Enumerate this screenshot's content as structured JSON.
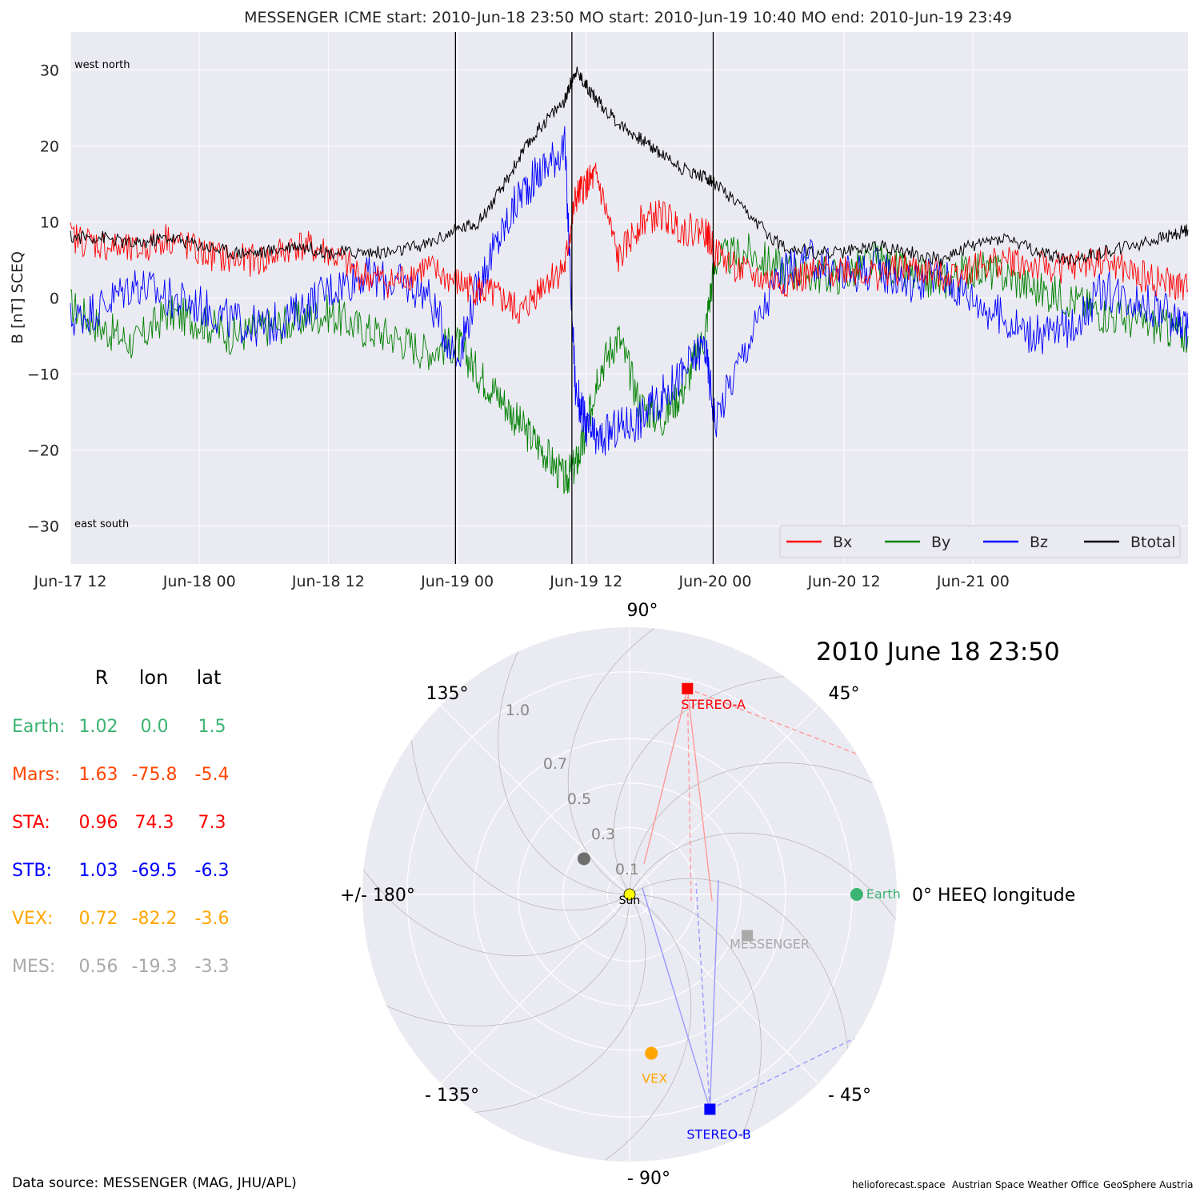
{
  "top_plot": {
    "title": "MESSENGER    ICME start: 2010-Jun-18 23:50   MO start: 2010-Jun-19 10:40   MO end: 2010-Jun-19 23:49",
    "corner_labels": {
      "top": "west    north",
      "bottom": "east    south"
    },
    "colors": {
      "Bx": "#ff0000",
      "By": "#008000",
      "Bz": "#0000ff",
      "Btotal": "#000000",
      "background": "#eaeaf2",
      "grid": "#ffffff"
    }
  },
  "bottom_plot": {
    "date_title": "2010 June 18  23:50",
    "angle_labels": [
      "90°",
      "45°",
      "0° HEEQ longitude",
      "- 45°",
      "- 90°",
      "- 135°",
      "+/- 180°",
      "135°"
    ],
    "radial_labels": [
      "0.1",
      "0.3",
      "0.5",
      "0.7",
      "1.0"
    ],
    "sun_label": "Sun",
    "markers": [
      {
        "name": "Earth",
        "r": 1.02,
        "lon": 0.0,
        "color": "#3cb371",
        "shape": "circle"
      },
      {
        "name": "MESSENGER",
        "r": 0.56,
        "lon": -19.3,
        "color": "#a9a9a9",
        "shape": "square"
      },
      {
        "name": "STEREO-A",
        "r": 0.96,
        "lon": 74.3,
        "color": "#ff0000",
        "shape": "square"
      },
      {
        "name": "STEREO-B",
        "r": 1.03,
        "lon": -69.5,
        "color": "#0000ff",
        "shape": "square"
      },
      {
        "name": "VEX",
        "r": 0.72,
        "lon": -82.2,
        "color": "#ffa500",
        "shape": "circle"
      },
      {
        "name": "",
        "r": 0.26,
        "lon": 142,
        "color": "#6e6e6e",
        "shape": "circle"
      }
    ]
  },
  "position_table": {
    "headers": [
      "R",
      "lon",
      "lat"
    ],
    "rows": [
      {
        "label": "Earth:",
        "R": "1.02",
        "lon": "0.0",
        "lat": "1.5",
        "color": "#3cb371"
      },
      {
        "label": "Mars:",
        "R": "1.63",
        "lon": "-75.8",
        "lat": "-5.4",
        "color": "#ff4500"
      },
      {
        "label": "STA:",
        "R": "0.96",
        "lon": "74.3",
        "lat": "7.3",
        "color": "#ff0000"
      },
      {
        "label": "STB:",
        "R": "1.03",
        "lon": "-69.5",
        "lat": "-6.3",
        "color": "#0000ff"
      },
      {
        "label": "VEX:",
        "R": "0.72",
        "lon": "-82.2",
        "lat": "-3.6",
        "color": "#ffa500"
      },
      {
        "label": "MES:",
        "R": "0.56",
        "lon": "-19.3",
        "lat": "-3.3",
        "color": "#a9a9a9"
      }
    ]
  },
  "footer": {
    "data_source": "Data source: MESSENGER (MAG, JHU/APL)",
    "credits": [
      "helioforecast.space",
      "Austrian Space Weather Office",
      "GeoSphere Austria"
    ]
  },
  "chart_data": [
    {
      "type": "line",
      "title": "MESSENGER    ICME start: 2010-Jun-18 23:50   MO start: 2010-Jun-19 10:40   MO end: 2010-Jun-19 23:49",
      "xlabel": "",
      "ylabel": "B [nT] SCEQ",
      "xlim": [
        "2010-06-17 12:00",
        "2010-06-21 20:00"
      ],
      "ylim": [
        -35,
        35
      ],
      "x_tick_labels": [
        "Jun-17 12",
        "Jun-18 00",
        "Jun-18 12",
        "Jun-19 00",
        "Jun-19 12",
        "Jun-20 00",
        "Jun-20 12",
        "Jun-21 00"
      ],
      "y_tick_labels": [
        "−30",
        "−20",
        "−10",
        "0",
        "10",
        "20",
        "30"
      ],
      "y_ticks": [
        -30,
        -20,
        -10,
        0,
        10,
        20,
        30
      ],
      "grid": true,
      "legend": "bottom-right",
      "vertical_lines": [
        "2010-06-18 23:50",
        "2010-06-19 10:40",
        "2010-06-19 23:49"
      ],
      "x": [
        "2010-06-17 12:00",
        "2010-06-17 15:00",
        "2010-06-17 18:00",
        "2010-06-17 21:00",
        "2010-06-18 00:00",
        "2010-06-18 03:00",
        "2010-06-18 06:00",
        "2010-06-18 09:00",
        "2010-06-18 12:00",
        "2010-06-18 15:00",
        "2010-06-18 18:00",
        "2010-06-18 21:00",
        "2010-06-19 00:00",
        "2010-06-19 02:00",
        "2010-06-19 04:00",
        "2010-06-19 06:00",
        "2010-06-19 08:00",
        "2010-06-19 10:00",
        "2010-06-19 11:00",
        "2010-06-19 12:00",
        "2010-06-19 13:00",
        "2010-06-19 15:00",
        "2010-06-19 17:00",
        "2010-06-19 19:00",
        "2010-06-19 21:00",
        "2010-06-19 23:00",
        "2010-06-20 00:00",
        "2010-06-20 03:00",
        "2010-06-20 06:00",
        "2010-06-20 09:00",
        "2010-06-20 12:00",
        "2010-06-20 15:00",
        "2010-06-20 18:00",
        "2010-06-20 21:00",
        "2010-06-21 00:00",
        "2010-06-21 03:00",
        "2010-06-21 06:00",
        "2010-06-21 09:00",
        "2010-06-21 12:00",
        "2010-06-21 15:00",
        "2010-06-21 18:00",
        "2010-06-21 20:00"
      ],
      "series": [
        {
          "name": "Bx",
          "values": [
            8,
            7,
            6,
            8,
            6,
            5,
            5,
            7,
            6,
            3,
            2,
            4,
            2,
            1,
            0,
            -2,
            2,
            4,
            13,
            15,
            16,
            5,
            10,
            11,
            9,
            9,
            6,
            3,
            2,
            3,
            4,
            3,
            4,
            3,
            4,
            5,
            4,
            4,
            5,
            3,
            2,
            1
          ]
        },
        {
          "name": "By",
          "values": [
            -1,
            -4,
            -6,
            -2,
            -3,
            -5,
            -4,
            -3,
            -2,
            -4,
            -5,
            -7,
            -6,
            -10,
            -13,
            -17,
            -20,
            -24,
            -22,
            -18,
            -10,
            -5,
            -14,
            -16,
            -12,
            -5,
            5,
            6,
            4,
            3,
            3,
            5,
            3,
            2,
            4,
            3,
            1,
            0,
            -2,
            -3,
            -4,
            -5
          ]
        },
        {
          "name": "Bz",
          "values": [
            -3,
            -1,
            2,
            0,
            -1,
            -3,
            -4,
            -2,
            1,
            3,
            2,
            1,
            -8,
            2,
            8,
            14,
            17,
            20,
            -12,
            -17,
            -19,
            -17,
            -16,
            -13,
            -10,
            -6,
            -16,
            -6,
            3,
            5,
            3,
            4,
            2,
            3,
            0,
            -3,
            -5,
            -4,
            1,
            0,
            -2,
            -4
          ]
        },
        {
          "name": "Btotal",
          "values": [
            8,
            8,
            7,
            8,
            7,
            6,
            6,
            7,
            6,
            6,
            6,
            7,
            9,
            10,
            14,
            19,
            23,
            26,
            30,
            28,
            26,
            23,
            21,
            19,
            17,
            16,
            15,
            11,
            7,
            6,
            6,
            7,
            6,
            5,
            7,
            8,
            6,
            5,
            6,
            7,
            8,
            9
          ]
        }
      ]
    },
    {
      "type": "scatter",
      "title": "2010 June 18  23:50",
      "xlabel": "0° HEEQ longitude",
      "ylabel": "",
      "coordinate_system": "polar",
      "rlim": [
        0,
        1.2
      ],
      "r_tick_labels": [
        "0.1",
        "0.3",
        "0.5",
        "0.7",
        "1.0"
      ],
      "angle_tick_labels": [
        "0° HEEQ longitude",
        "45°",
        "90°",
        "135°",
        "+/- 180°",
        "- 135°",
        "- 90°",
        "- 45°"
      ],
      "points": [
        {
          "name": "Sun",
          "r": 0.0,
          "lon": 0.0
        },
        {
          "name": "Earth",
          "r": 1.02,
          "lon": 0.0
        },
        {
          "name": "MESSENGER",
          "r": 0.56,
          "lon": -19.3
        },
        {
          "name": "STEREO-A",
          "r": 0.96,
          "lon": 74.3
        },
        {
          "name": "STEREO-B",
          "r": 1.03,
          "lon": -69.5
        },
        {
          "name": "VEX",
          "r": 0.72,
          "lon": -82.2
        },
        {
          "name": "",
          "r": 0.26,
          "lon": 142
        }
      ]
    }
  ]
}
